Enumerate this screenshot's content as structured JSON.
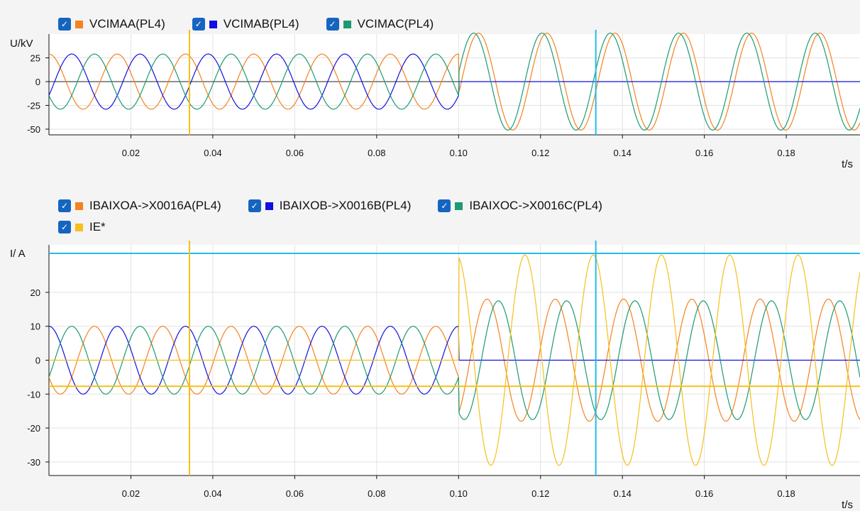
{
  "chart_data": [
    {
      "type": "line",
      "title": "",
      "ylabel": "U/kV",
      "xlabel": "t/s",
      "xlim": [
        0.0,
        0.198
      ],
      "ylim": [
        -56,
        50
      ],
      "x_ticks": [
        0.02,
        0.04,
        0.06,
        0.08,
        0.1,
        0.12,
        0.14,
        0.16,
        0.18
      ],
      "x_tick_labels": [
        "0.02",
        "0.04",
        "0.06",
        "0.08",
        "0.10",
        "0.12",
        "0.14",
        "0.16",
        "0.18"
      ],
      "y_ticks": [
        25,
        0,
        -25,
        -50
      ],
      "y_tick_labels": [
        "25",
        "0",
        "-25",
        "-50"
      ],
      "grid": true,
      "legend_position": "top-left",
      "series": [
        {
          "name": "VCIMAA(PL4)",
          "color": "#f5821f",
          "frequency_hz": 60,
          "pre_fault_amplitude": 29,
          "pre_fault_phase_deg": 90,
          "post_fault_amplitude": 51,
          "post_fault_phase_deg": -15
        },
        {
          "name": "VCIMAB(PL4)",
          "color": "#1010e0",
          "frequency_hz": 60,
          "pre_fault_amplitude": 29,
          "pre_fault_phase_deg": -30,
          "post_fault_amplitude": 0,
          "post_fault_phase_deg": 0
        },
        {
          "name": "VCIMAC(PL4)",
          "color": "#1c9a72",
          "frequency_hz": 60,
          "pre_fault_amplitude": 29,
          "pre_fault_phase_deg": 210,
          "post_fault_amplitude": 51,
          "post_fault_phase_deg": 10
        }
      ],
      "cursors": [
        {
          "t": 0.0343,
          "color": "#f5c01a"
        },
        {
          "t": 0.1335,
          "color": "#22bde8"
        }
      ],
      "fault_time": 0.1
    },
    {
      "type": "line",
      "title": "",
      "ylabel": "I/ A",
      "xlabel": "t/s",
      "xlim": [
        0.0,
        0.198
      ],
      "ylim": [
        -34,
        34
      ],
      "x_ticks": [
        0.02,
        0.04,
        0.06,
        0.08,
        0.1,
        0.12,
        0.14,
        0.16,
        0.18
      ],
      "x_tick_labels": [
        "0.02",
        "0.04",
        "0.06",
        "0.08",
        "0.10",
        "0.12",
        "0.14",
        "0.16",
        "0.18"
      ],
      "y_ticks": [
        20,
        10,
        0,
        -10,
        -20,
        -30
      ],
      "y_tick_labels": [
        "20",
        "10",
        "0",
        "-10",
        "-20",
        "-30"
      ],
      "grid": true,
      "legend_position": "top-left",
      "series": [
        {
          "name": "IBAIXOA->X0016A(PL4)",
          "color": "#f5821f",
          "frequency_hz": 60,
          "pre_fault_amplitude": 10,
          "pre_fault_phase_deg": 210,
          "post_fault_amplitude": 18,
          "post_fault_phase_deg": -60
        },
        {
          "name": "IBAIXOB->X0016B(PL4)",
          "color": "#1010e0",
          "frequency_hz": 60,
          "pre_fault_amplitude": 10,
          "pre_fault_phase_deg": 90,
          "post_fault_amplitude": 0,
          "post_fault_phase_deg": 0
        },
        {
          "name": "IBAIXOC->X0016C(PL4)",
          "color": "#1c9a72",
          "frequency_hz": 60,
          "pre_fault_amplitude": 10,
          "pre_fault_phase_deg": -30,
          "post_fault_amplitude": 17.5,
          "post_fault_phase_deg": -120
        },
        {
          "name": "IE*",
          "color": "#f5c01a",
          "frequency_hz": 60,
          "pre_fault_amplitude": 0,
          "pre_fault_phase_deg": 0,
          "post_fault_amplitude": 31,
          "post_fault_phase_deg": 100
        }
      ],
      "cursors": [
        {
          "t": 0.0343,
          "color": "#f5c01a"
        },
        {
          "t": 0.1335,
          "color": "#22bde8"
        }
      ],
      "h_cursors": [
        {
          "value": 31.5,
          "color": "#22bde8"
        },
        {
          "value": -7.7,
          "color": "#f5c01a"
        }
      ],
      "fault_time": 0.1
    }
  ],
  "legend_check_glyph": "✓"
}
